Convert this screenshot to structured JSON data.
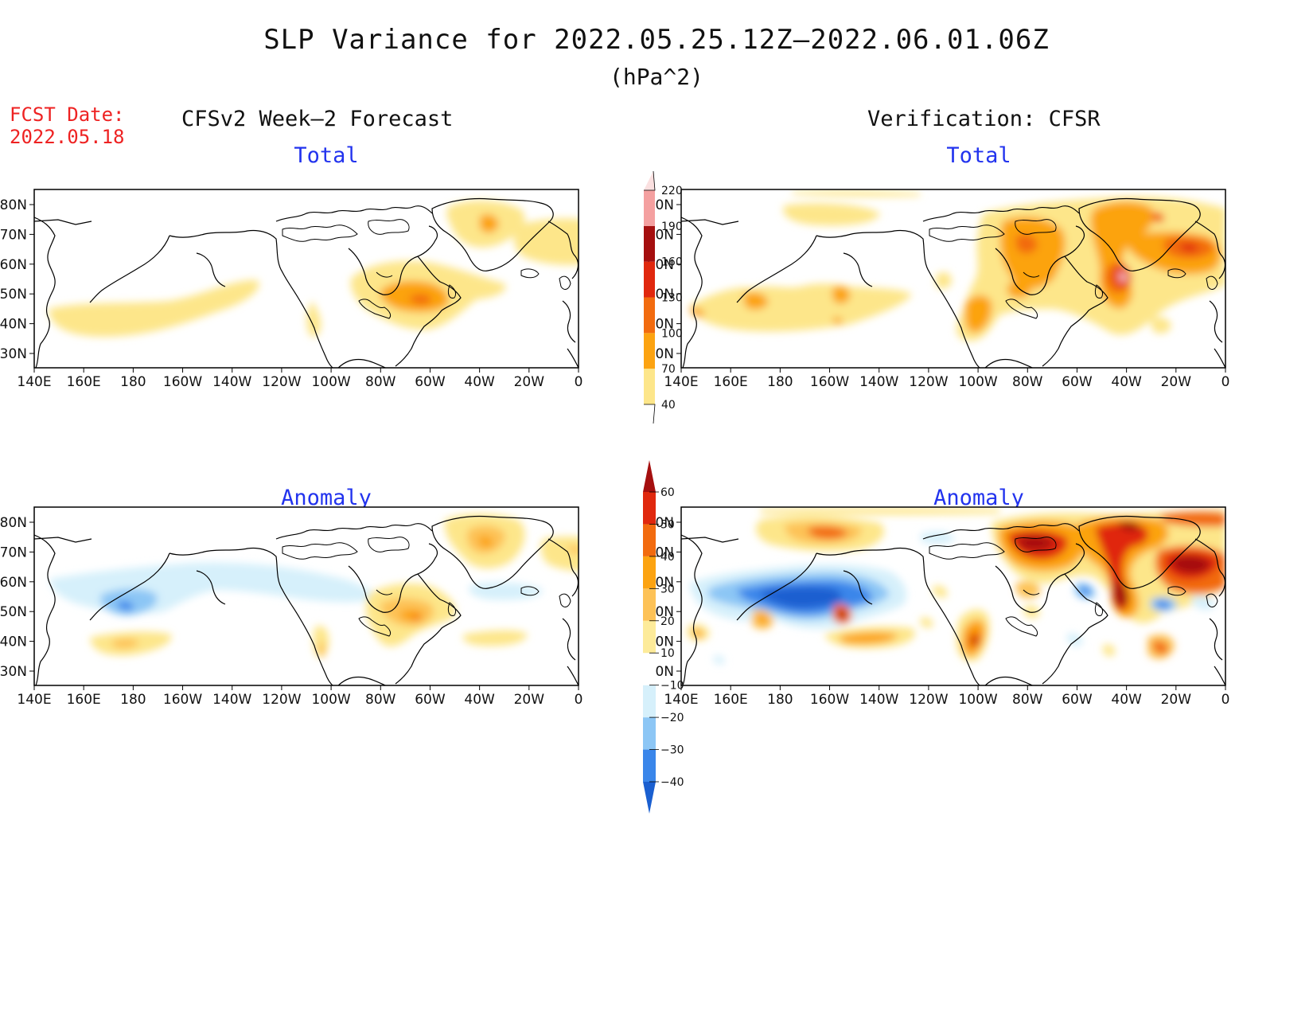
{
  "title": "SLP Variance for 2022.05.25.12Z–2022.06.01.06Z",
  "units": "(hPa^2)",
  "fcst_label": "FCST Date:",
  "fcst_date": "2022.05.18",
  "left_column_title": "CFSv2 Week–2 Forecast",
  "right_column_title": "Verification: CFSR",
  "panels": {
    "top_left_subtitle": "Total",
    "top_right_subtitle": "Total",
    "bottom_left_subtitle": "Anomaly",
    "bottom_right_subtitle": "Anomaly"
  },
  "lat_labels": [
    "80N",
    "70N",
    "60N",
    "50N",
    "40N",
    "30N"
  ],
  "lon_labels": [
    "140E",
    "160E",
    "180",
    "160W",
    "140W",
    "120W",
    "100W",
    "80W",
    "60W",
    "40W",
    "20W",
    "0"
  ],
  "colorbar_total": {
    "levels": [
      "40",
      "70",
      "100",
      "130",
      "160",
      "190",
      "220"
    ],
    "colors": [
      "#fde68a",
      "#fca311",
      "#f26b0f",
      "#e0280e",
      "#a50f0f",
      "#f4a0a0",
      "#fbe0e0"
    ]
  },
  "colorbar_anomaly": {
    "levels": [
      "−40",
      "−30",
      "−20",
      "−10",
      "10",
      "20",
      "30",
      "40",
      "50",
      "60"
    ],
    "colors": [
      "#1a5fd0",
      "#3a86ea",
      "#8cc6f5",
      "#d6f0fb",
      "#ffffff",
      "#fdeb9a",
      "#fdc257",
      "#fca311",
      "#f26b0f",
      "#e0280e",
      "#a50f0f"
    ]
  }
}
